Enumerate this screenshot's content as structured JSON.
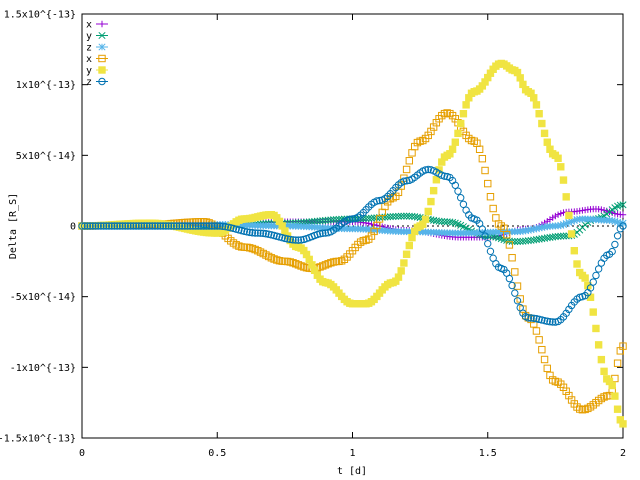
{
  "chart_data": {
    "type": "scatter",
    "xlabel": "t [d]",
    "ylabel": "Delta [R_S]",
    "xlim": [
      0,
      2
    ],
    "ylim": [
      -1.5e-13,
      1.5e-13
    ],
    "x_ticks": [
      {
        "value": 0,
        "label": "0"
      },
      {
        "value": 0.5,
        "label": "0.5"
      },
      {
        "value": 1,
        "label": "1"
      },
      {
        "value": 1.5,
        "label": "1.5"
      },
      {
        "value": 2,
        "label": "2"
      }
    ],
    "y_ticks": [
      {
        "value": 1.5e-13,
        "label": "1.5x10^{-13}"
      },
      {
        "value": 1e-13,
        "label": "1x10^{-13}"
      },
      {
        "value": 5e-14,
        "label": "5x10^{-14}"
      },
      {
        "value": 0,
        "label": "0"
      },
      {
        "value": -5e-14,
        "label": "-5x10^{-14}"
      },
      {
        "value": -1e-13,
        "label": "-1x10^{-13}"
      },
      {
        "value": -1.5e-13,
        "label": "-1.5x10^{-13}"
      }
    ],
    "zero_line": true,
    "grid": false,
    "legend": "top-left",
    "series": [
      {
        "name": "x",
        "color": "#9400d3",
        "marker": "plus",
        "x": [
          0,
          0.25,
          0.5,
          0.75,
          1.0,
          1.2,
          1.4,
          1.5,
          1.65,
          1.8,
          1.9,
          2.0
        ],
        "y": [
          0,
          2e-15,
          0,
          3e-15,
          3e-15,
          -3e-15,
          -8e-15,
          -8e-15,
          -2e-15,
          1e-14,
          1.2e-14,
          8e-15
        ]
      },
      {
        "name": "y",
        "color": "#009e73",
        "marker": "cross",
        "x": [
          0,
          0.25,
          0.5,
          0.75,
          1.0,
          1.2,
          1.35,
          1.5,
          1.6,
          1.8,
          1.9,
          2.0
        ],
        "y": [
          0,
          1e-15,
          0,
          2e-15,
          5e-15,
          7e-15,
          3e-15,
          -7e-15,
          -1.1e-14,
          -7e-15,
          5e-15,
          1.5e-14
        ]
      },
      {
        "name": "z",
        "color": "#56b4e9",
        "marker": "star",
        "x": [
          0,
          0.25,
          0.5,
          0.75,
          1.0,
          1.2,
          1.4,
          1.6,
          1.75,
          1.85,
          1.95,
          2.0
        ],
        "y": [
          0,
          0,
          1e-15,
          0,
          -2e-15,
          -4e-15,
          -5e-15,
          -4e-15,
          0,
          5e-15,
          4e-15,
          2e-15
        ]
      },
      {
        "name": "x",
        "color": "#e69f00",
        "marker": "box",
        "x": [
          0,
          0.25,
          0.45,
          0.6,
          0.75,
          0.85,
          0.95,
          1.05,
          1.15,
          1.25,
          1.35,
          1.45,
          1.55,
          1.65,
          1.75,
          1.85,
          1.95,
          2.0
        ],
        "y": [
          0,
          1e-15,
          3e-15,
          -1.5e-14,
          -2.5e-14,
          -3e-14,
          -2.5e-14,
          -1e-14,
          2e-14,
          6e-14,
          8e-14,
          6e-14,
          0,
          -6.5e-14,
          -1.1e-13,
          -1.3e-13,
          -1.2e-13,
          -8.5e-14
        ]
      },
      {
        "name": "y",
        "color": "#f0e442",
        "marker": "filled-box",
        "x": [
          0,
          0.25,
          0.5,
          0.6,
          0.7,
          0.8,
          0.9,
          1.0,
          1.05,
          1.15,
          1.25,
          1.35,
          1.45,
          1.55,
          1.6,
          1.65,
          1.75,
          1.85,
          1.95,
          2.0
        ],
        "y": [
          0,
          2e-15,
          -5e-15,
          5e-15,
          8e-15,
          -1.5e-14,
          -4e-14,
          -5.5e-14,
          -5.5e-14,
          -4e-14,
          0,
          5e-14,
          9.5e-14,
          1.15e-13,
          1.1e-13,
          9.5e-14,
          5e-14,
          -3.5e-14,
          -1.1e-13,
          -1.4e-13
        ]
      },
      {
        "name": "z",
        "color": "#0072b2",
        "marker": "circle",
        "x": [
          0,
          0.25,
          0.5,
          0.65,
          0.8,
          0.9,
          1.0,
          1.1,
          1.2,
          1.28,
          1.35,
          1.45,
          1.55,
          1.65,
          1.75,
          1.85,
          1.95,
          2.0
        ],
        "y": [
          0,
          0,
          0,
          -5e-15,
          -1e-14,
          -5e-15,
          5e-15,
          1.8e-14,
          3.2e-14,
          4e-14,
          3.5e-14,
          5e-15,
          -3e-14,
          -6.5e-14,
          -6.8e-14,
          -5e-14,
          -2e-14,
          0
        ]
      }
    ]
  }
}
